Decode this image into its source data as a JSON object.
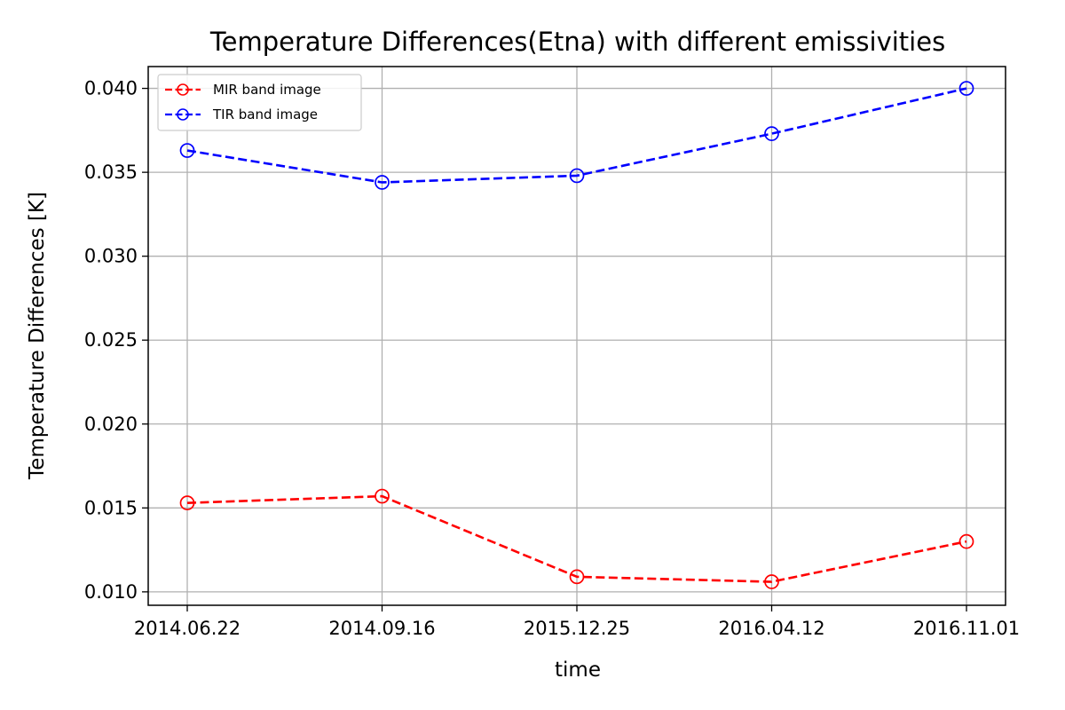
{
  "chart_data": {
    "type": "line",
    "title": "Temperature Differences(Etna) with different emissivities",
    "xlabel": "time",
    "ylabel": "Temperature Differences [K]",
    "categories": [
      "2014.06.22",
      "2014.09.16",
      "2015.12.25",
      "2016.04.12",
      "2016.11.01"
    ],
    "ylim": [
      0.0092,
      0.0413
    ],
    "yticks": [
      0.01,
      0.015,
      0.02,
      0.025,
      0.03,
      0.035,
      0.04
    ],
    "ytick_labels": [
      "0.010",
      "0.015",
      "0.020",
      "0.025",
      "0.030",
      "0.035",
      "0.040"
    ],
    "grid": true,
    "legend_position": "top-left",
    "series": [
      {
        "name": "MIR band image",
        "color": "#ff0000",
        "line_style": "dashed",
        "marker": "open-circle",
        "values": [
          0.0153,
          0.0157,
          0.0109,
          0.0106,
          0.013
        ]
      },
      {
        "name": "TIR band image",
        "color": "#0000ff",
        "line_style": "dashed",
        "marker": "open-circle",
        "values": [
          0.0363,
          0.0344,
          0.0348,
          0.0373,
          0.04
        ]
      }
    ]
  }
}
